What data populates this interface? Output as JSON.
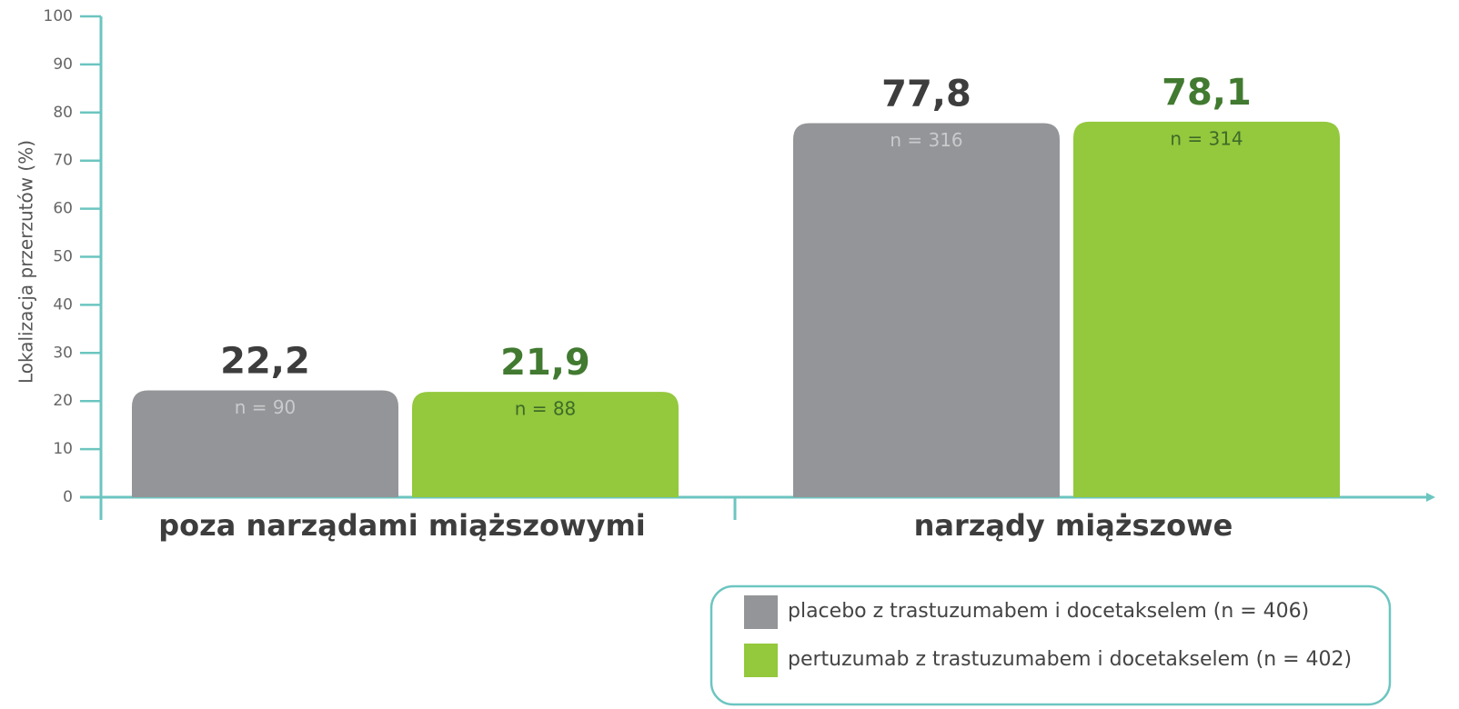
{
  "chart_data": {
    "type": "bar",
    "y_label": "Lokalizacja przerzutów (%)",
    "categories": [
      "poza narządami miąższowymi",
      "narządy miąższowe"
    ],
    "series": [
      {
        "name": "placebo z trastuzumabem i docetakselem (n = 406)",
        "color": "#939598",
        "label_color": "#3d3d3d",
        "n_color": "#c9cacc",
        "values": [
          22.2,
          77.8
        ],
        "value_labels": [
          "22,2",
          "77,8"
        ],
        "n_labels": [
          "n = 90",
          "n = 316"
        ]
      },
      {
        "name": "pertuzumab z trastuzumabem i docetakselem (n = 402)",
        "color": "#94c83d",
        "label_color": "#417a30",
        "n_color": "#3d6b28",
        "values": [
          21.9,
          78.1
        ],
        "value_labels": [
          "21,9",
          "78,1"
        ],
        "n_labels": [
          "n = 88",
          "n = 314"
        ]
      }
    ],
    "ylim": [
      0,
      100
    ],
    "yticks": [
      0,
      10,
      20,
      30,
      40,
      50,
      60,
      70,
      80,
      90,
      100
    ],
    "axis_color": "#6cc5c0"
  }
}
